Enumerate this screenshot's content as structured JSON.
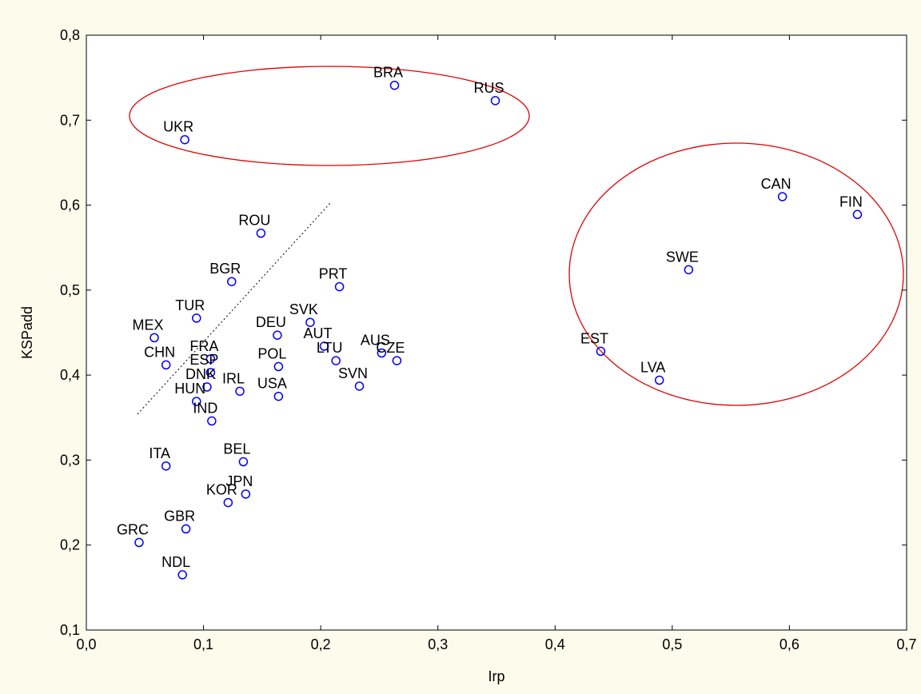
{
  "chart_data": {
    "type": "scatter",
    "xlabel": "Irp",
    "ylabel": "KSPadd",
    "labels": [
      "BRA",
      "RUS",
      "UKR",
      "CAN",
      "FIN",
      "SWE",
      "EST",
      "LVA",
      "ROU",
      "BGR",
      "PRT",
      "TUR",
      "MEX",
      "SVK",
      "DEU",
      "AUT",
      "FRA",
      "CHN",
      "ESP",
      "DNK",
      "HUN",
      "POL",
      "LTU",
      "AUS",
      "CZE",
      "SVN",
      "IRL",
      "USA",
      "IND",
      "ITA",
      "BEL",
      "JPN",
      "KOR",
      "GBR",
      "GRC",
      "NDL"
    ],
    "x": [
      0.263,
      0.349,
      0.084,
      0.594,
      0.658,
      0.514,
      0.439,
      0.489,
      0.149,
      0.124,
      0.216,
      0.094,
      0.058,
      0.191,
      0.163,
      0.203,
      0.106,
      0.068,
      0.106,
      0.103,
      0.094,
      0.164,
      0.213,
      0.252,
      0.265,
      0.233,
      0.131,
      0.164,
      0.107,
      0.068,
      0.134,
      0.136,
      0.121,
      0.085,
      0.045,
      0.082
    ],
    "y": [
      0.741,
      0.723,
      0.677,
      0.61,
      0.589,
      0.524,
      0.428,
      0.394,
      0.567,
      0.51,
      0.504,
      0.467,
      0.444,
      0.462,
      0.447,
      0.434,
      0.419,
      0.412,
      0.403,
      0.386,
      0.369,
      0.41,
      0.417,
      0.426,
      0.417,
      0.387,
      0.381,
      0.375,
      0.346,
      0.293,
      0.298,
      0.26,
      0.25,
      0.219,
      0.203,
      0.165
    ],
    "color": "#0000ff",
    "xlim": [
      0,
      0.7
    ],
    "xticks": [
      {
        "value": 0,
        "label": "0,0"
      },
      {
        "value": 0.1,
        "label": "0,1"
      },
      {
        "value": 0.2,
        "label": "0,2"
      },
      {
        "value": 0.3,
        "label": "0,3"
      },
      {
        "value": 0.4,
        "label": "0,4"
      },
      {
        "value": 0.5,
        "label": "0,5"
      },
      {
        "value": 0.6,
        "label": "0,6"
      },
      {
        "value": 0.7,
        "label": "0,7"
      }
    ],
    "ylim": [
      0.1,
      0.8
    ],
    "yticks": [
      {
        "value": 0.1,
        "label": "0,1"
      },
      {
        "value": 0.2,
        "label": "0,2"
      },
      {
        "value": 0.3,
        "label": "0,3"
      },
      {
        "value": 0.4,
        "label": "0,4"
      },
      {
        "value": 0.5,
        "label": "0,5"
      },
      {
        "value": 0.6,
        "label": "0,6"
      },
      {
        "value": 0.7,
        "label": "0,7"
      },
      {
        "value": 0.8,
        "label": "0,8"
      }
    ]
  }
}
